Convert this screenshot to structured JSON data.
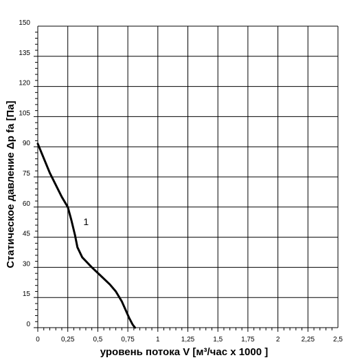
{
  "chart_data": {
    "type": "line",
    "xlabel": "уровень потока  V [м³/час x 1000 ]",
    "ylabel": "Статическое давление  Δp fa [Па]",
    "xlim": [
      0,
      2.5
    ],
    "ylim": [
      0,
      150
    ],
    "x_ticks": [
      0,
      0.25,
      0.5,
      0.75,
      1,
      1.25,
      1.5,
      1.75,
      2,
      2.25,
      2.5
    ],
    "x_tick_labels": [
      "0",
      "0,25",
      "0,5",
      "0,75",
      "1",
      "1,25",
      "1,5",
      "1,75",
      "2",
      "2,25",
      "2,5"
    ],
    "y_ticks": [
      0,
      15,
      30,
      45,
      60,
      75,
      90,
      105,
      120,
      135,
      150
    ],
    "y_tick_labels": [
      "0",
      "15",
      "30",
      "45",
      "60",
      "75",
      "90",
      "105",
      "120",
      "135",
      "150"
    ],
    "grid": true,
    "series": [
      {
        "name": "1",
        "x": [
          0,
          0.1,
          0.2,
          0.25,
          0.28,
          0.31,
          0.33,
          0.37,
          0.45,
          0.53,
          0.6,
          0.65,
          0.7,
          0.73,
          0.76,
          0.79,
          0.81
        ],
        "y": [
          91.5,
          77,
          65,
          60,
          53.5,
          46,
          40,
          35,
          30,
          25.5,
          21.5,
          18,
          13,
          9,
          5,
          1.5,
          0
        ]
      }
    ],
    "annotations": [
      {
        "text": "1",
        "x": 0.38,
        "y": 51
      }
    ],
    "line_color": "#000000"
  }
}
